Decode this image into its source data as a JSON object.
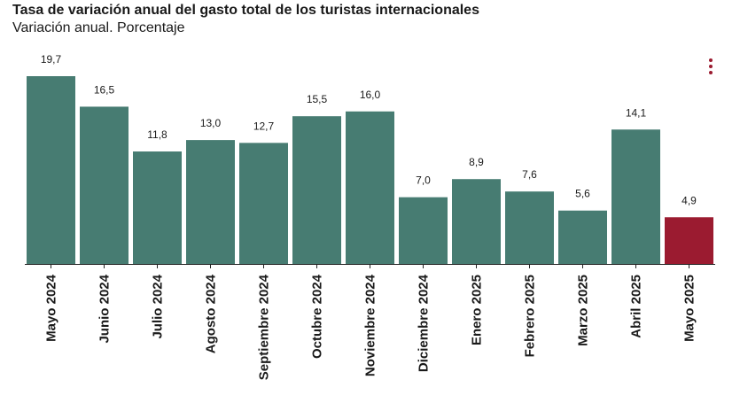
{
  "header": {
    "title": "Tasa de variación anual del gasto total de los turistas internacionales",
    "subtitle": "Variación anual. Porcentaje"
  },
  "menu": {
    "icon": "more-vertical-icon"
  },
  "colors": {
    "bar": "#477c72",
    "highlight": "#9b1b30",
    "menu": "#9b1b30",
    "axis": "#222222"
  },
  "chart_data": {
    "type": "bar",
    "title": "Tasa de variación anual del gasto total de los turistas internacionales",
    "subtitle": "Variación anual. Porcentaje",
    "categories": [
      "Mayo 2024",
      "Junio 2024",
      "Julio 2024",
      "Agosto 2024",
      "Septiembre 2024",
      "Octubre 2024",
      "Noviembre 2024",
      "Diciembre 2024",
      "Enero 2025",
      "Febrero 2025",
      "Marzo 2025",
      "Abril 2025",
      "Mayo 2025"
    ],
    "values": [
      19.7,
      16.5,
      11.8,
      13.0,
      12.7,
      15.5,
      16.0,
      7.0,
      8.9,
      7.6,
      5.6,
      14.1,
      4.9
    ],
    "value_labels": [
      "19,7",
      "16,5",
      "11,8",
      "13,0",
      "12,7",
      "15,5",
      "16,0",
      "7,0",
      "8,9",
      "7,6",
      "5,6",
      "14,1",
      "4,9"
    ],
    "highlight_index": 12,
    "ylim": [
      0,
      20
    ],
    "grid": false,
    "xlabel": "",
    "ylabel": ""
  }
}
